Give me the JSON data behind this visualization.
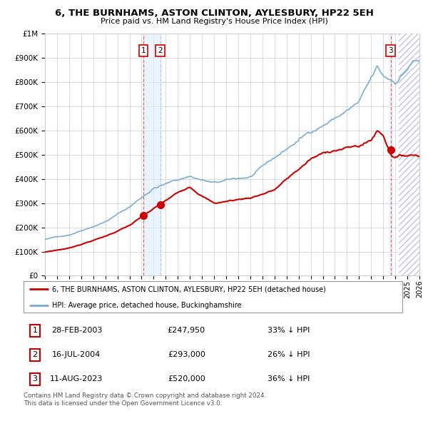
{
  "title": "6, THE BURNHAMS, ASTON CLINTON, AYLESBURY, HP22 5EH",
  "subtitle": "Price paid vs. HM Land Registry's House Price Index (HPI)",
  "legend_red": "6, THE BURNHAMS, ASTON CLINTON, AYLESBURY, HP22 5EH (detached house)",
  "legend_blue": "HPI: Average price, detached house, Buckinghamshire",
  "footer1": "Contains HM Land Registry data © Crown copyright and database right 2024.",
  "footer2": "This data is licensed under the Open Government Licence v3.0.",
  "transactions": [
    {
      "num": 1,
      "date": "28-FEB-2003",
      "price": "£247,950",
      "hpi": "33% ↓ HPI",
      "year": 2003.15
    },
    {
      "num": 2,
      "date": "16-JUL-2004",
      "price": "£293,000",
      "hpi": "26% ↓ HPI",
      "year": 2004.54
    },
    {
      "num": 3,
      "date": "11-AUG-2023",
      "price": "£520,000",
      "hpi": "36% ↓ HPI",
      "year": 2023.62
    }
  ],
  "transaction_prices": [
    247950,
    293000,
    520000
  ],
  "ylim": [
    0,
    1000000
  ],
  "yticks": [
    0,
    100000,
    200000,
    300000,
    400000,
    500000,
    600000,
    700000,
    800000,
    900000,
    1000000
  ],
  "xmin": 1995,
  "xmax": 2026,
  "red_line_color": "#cc0000",
  "blue_line_color": "#7aadd4",
  "grid_color": "#cccccc",
  "bg_color": "#ffffff",
  "shade_color": "#ddeeff",
  "vline_color_red": "#ee6666",
  "vline_color_blue": "#aaccee",
  "transaction_box_color": "#cc0000",
  "hatch_color": "#aaaacc"
}
